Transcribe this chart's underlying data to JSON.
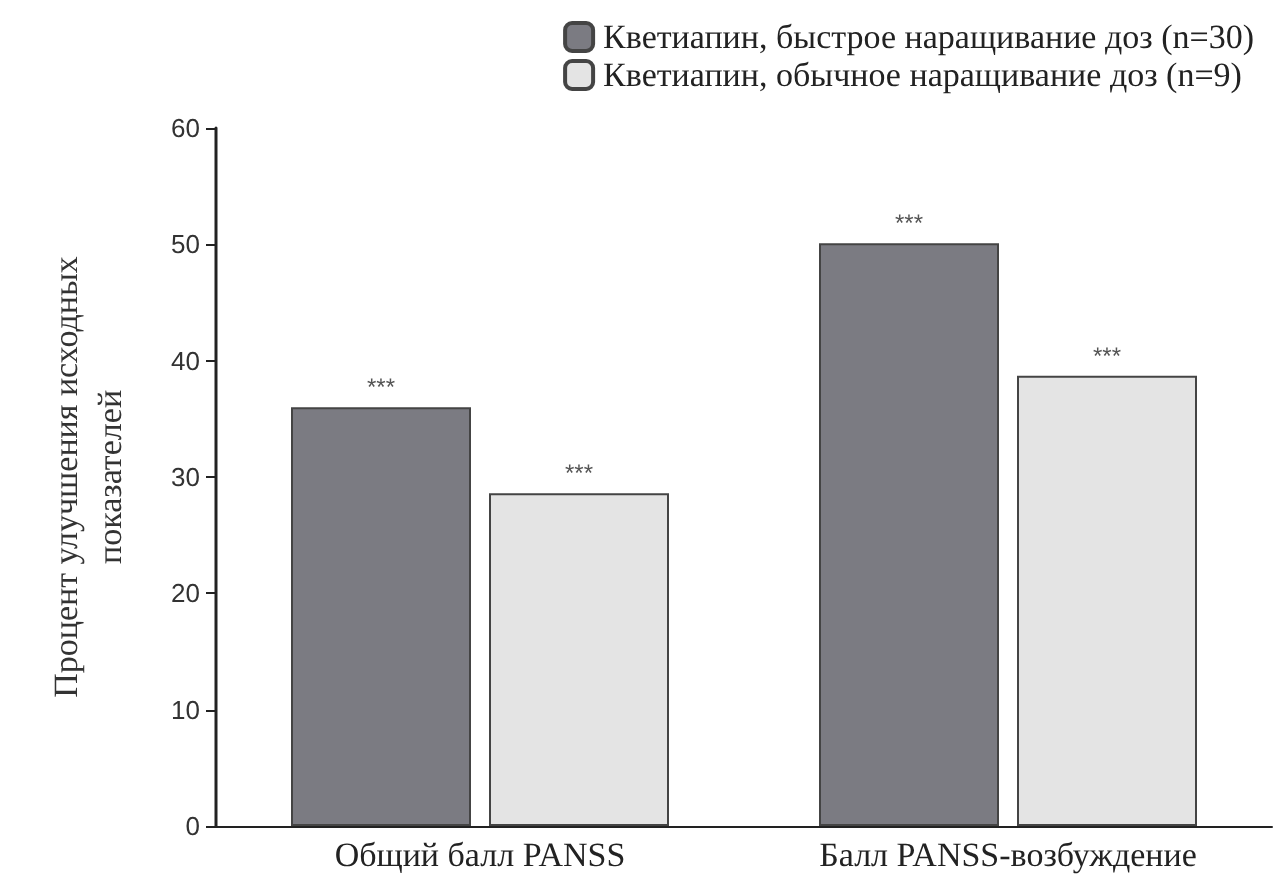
{
  "chart_data": {
    "type": "bar",
    "categories": [
      "Общий балл PANSS",
      "Балл PANSS-возбуждение"
    ],
    "ylabel": "Процент улучшения исходных\nпоказателей",
    "series": [
      {
        "name": "Кветиапин, быстрое наращивание доз (n=30)",
        "color": "#7b7b82",
        "values": [
          36,
          50.1
        ],
        "value_labels": [
          "***",
          "***"
        ]
      },
      {
        "name": "Кветиапин, обычное наращивание доз (n=9)",
        "color": "#e4e4e4",
        "values": [
          28.6,
          38.7
        ],
        "value_labels": [
          "***",
          "***"
        ]
      }
    ],
    "ylim": [
      0,
      60
    ],
    "yticks": [
      0,
      10,
      20,
      30,
      40,
      50,
      60
    ],
    "grid": false,
    "legend": "top right"
  }
}
